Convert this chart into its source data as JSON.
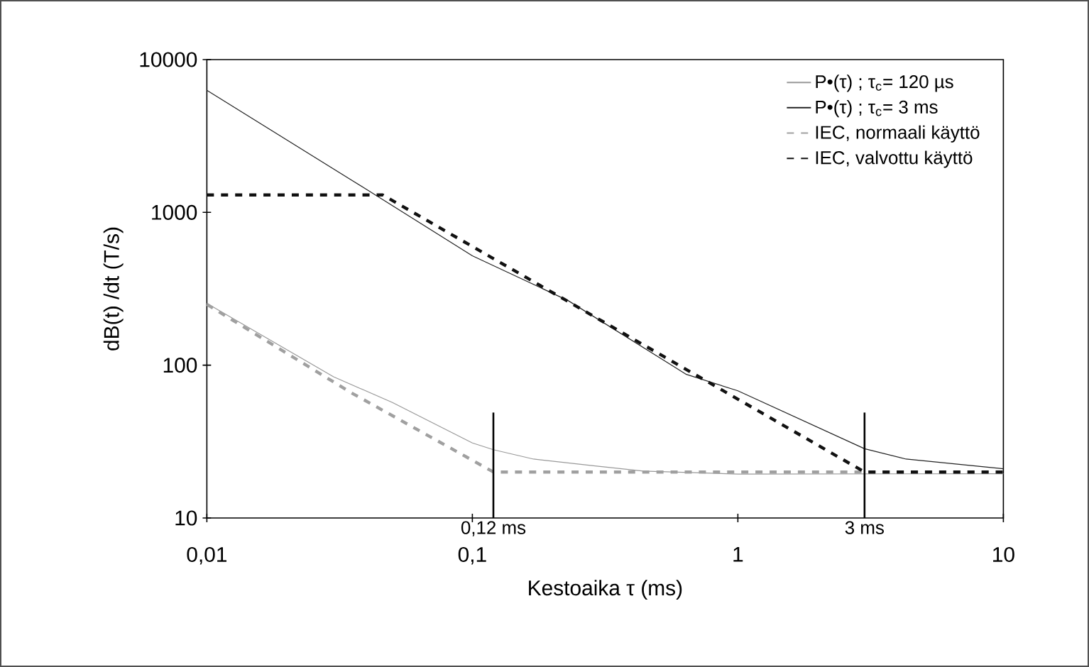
{
  "chart_data": {
    "type": "line",
    "xlabel": "Kestoaika τ (ms)",
    "ylabel": "dB(t) /dt  (T/s)",
    "log": "xy",
    "xlim": [
      0.01,
      10
    ],
    "ylim": [
      10,
      10000
    ],
    "xticks": [
      {
        "value": 0.01,
        "label": "0,01"
      },
      {
        "value": 0.1,
        "label": "0,1"
      },
      {
        "value": 1,
        "label": "1"
      },
      {
        "value": 10,
        "label": "10"
      }
    ],
    "yticks": [
      10,
      100,
      1000,
      10000
    ],
    "grid": false,
    "legend": "top right",
    "marker": "none",
    "series": [
      {
        "name": "P•(τ) ; τ$_{c}$= 120 µs",
        "color": "#999999",
        "line_style": "solid",
        "x": [
          0.01,
          0.03,
          0.05,
          0.1,
          0.12,
          0.17,
          0.29,
          0.44,
          1,
          10
        ],
        "values": [
          254,
          84,
          57,
          31,
          28,
          24.3,
          21.9,
          20.3,
          19.4,
          19.5
        ]
      },
      {
        "name": "P•(τ) ; τ$_{c}$= 3 ms",
        "color": "#222222",
        "line_style": "solid",
        "x": [
          0.01,
          0.039,
          0.1,
          0.23,
          0.64,
          1,
          3,
          4.3,
          10
        ],
        "values": [
          6300,
          1450,
          520,
          264,
          87,
          68,
          28.4,
          24.3,
          21
        ]
      },
      {
        "name": "IEC, normaali käyttö",
        "color": "#a0a0a0",
        "line_style": "dashed",
        "x": [
          0.01,
          0.035,
          0.12,
          10
        ],
        "values": [
          250,
          66,
          20,
          20
        ]
      },
      {
        "name": "IEC, valvottu käyttö",
        "color": "#111111",
        "line_style": "dashed",
        "x": [
          0.01,
          0.046,
          3,
          10
        ],
        "values": [
          1300,
          1300,
          20,
          20
        ]
      }
    ],
    "ref_lines": [
      {
        "axis": "x",
        "value": 0.12,
        "label": "0,12 ms",
        "color": "#000000"
      },
      {
        "axis": "x",
        "value": 3,
        "label": "3 ms",
        "color": "#000000"
      }
    ]
  }
}
